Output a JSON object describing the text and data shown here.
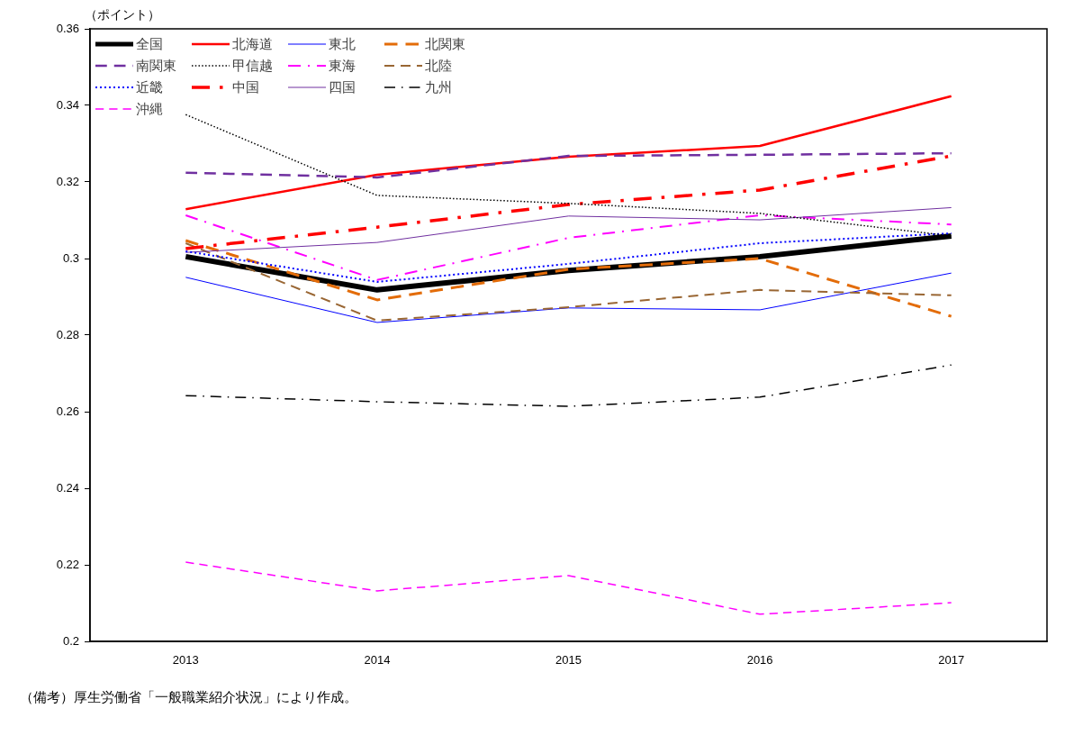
{
  "chart_data": {
    "type": "line",
    "ylabel": "（ポイント）",
    "categories": [
      "2013",
      "2014",
      "2015",
      "2016",
      "2017"
    ],
    "ylim": [
      0.2,
      0.36
    ],
    "yticks": [
      {
        "value": 0.2,
        "label": "0.2"
      },
      0.22,
      0.24,
      0.26,
      0.28,
      {
        "value": 0.3,
        "label": "0.3"
      },
      0.32,
      0.34,
      0.36
    ],
    "grid": false,
    "legend": "top left",
    "marker": "none",
    "annotations": [
      "（備考）厚生労働省「一般職業紹介状況」により作成。"
    ],
    "series": [
      {
        "name": "全国",
        "color": "#000000",
        "line_style": "solid",
        "values": [
          0.3005,
          0.2918,
          0.2969,
          0.3005,
          0.3059
        ]
      },
      {
        "name": "北海道",
        "color": "#ff0000",
        "line_style": "solid",
        "values": [
          0.3129,
          0.3219,
          0.3266,
          0.3294,
          0.3424
        ]
      },
      {
        "name": "東北",
        "color": "#0000ff",
        "line_style": "solid",
        "values": [
          0.2951,
          0.2833,
          0.2871,
          0.2866,
          0.2962
        ]
      },
      {
        "name": "北関東",
        "color": "#e36c09",
        "line_style": "dashed",
        "values": [
          0.3047,
          0.2892,
          0.2972,
          0.3,
          0.2849
        ]
      },
      {
        "name": "南関東",
        "color": "#7030a0",
        "line_style": "dashed",
        "values": [
          0.3224,
          0.3212,
          0.3268,
          0.3271,
          0.3275
        ]
      },
      {
        "name": "甲信越",
        "color": "#000000",
        "line_style": "dotted",
        "values": [
          0.3376,
          0.3165,
          0.3144,
          0.3118,
          0.3059
        ]
      },
      {
        "name": "東海",
        "color": "#ff00ff",
        "line_style": "dashdot",
        "values": [
          0.3113,
          0.2944,
          0.3054,
          0.3113,
          0.3089
        ]
      },
      {
        "name": "北陸",
        "color": "#996633",
        "line_style": "dashed",
        "values": [
          0.304,
          0.2838,
          0.2873,
          0.2918,
          0.2904
        ]
      },
      {
        "name": "近畿",
        "color": "#0000ff",
        "line_style": "dotted",
        "values": [
          0.3019,
          0.2939,
          0.2986,
          0.304,
          0.3066
        ]
      },
      {
        "name": "中国",
        "color": "#ff0000",
        "line_style": "dashdot",
        "values": [
          0.3026,
          0.3082,
          0.3141,
          0.3179,
          0.3268
        ]
      },
      {
        "name": "四国",
        "color": "#7030a0",
        "line_style": "solid",
        "values": [
          0.3016,
          0.3042,
          0.3111,
          0.3101,
          0.3133
        ]
      },
      {
        "name": "九州",
        "color": "#000000",
        "line_style": "dashdot",
        "values": [
          0.2642,
          0.2626,
          0.2614,
          0.2638,
          0.2722
        ]
      },
      {
        "name": "沖縄",
        "color": "#ff00ff",
        "line_style": "dashed",
        "values": [
          0.2207,
          0.2132,
          0.2172,
          0.2071,
          0.2101
        ]
      }
    ]
  }
}
